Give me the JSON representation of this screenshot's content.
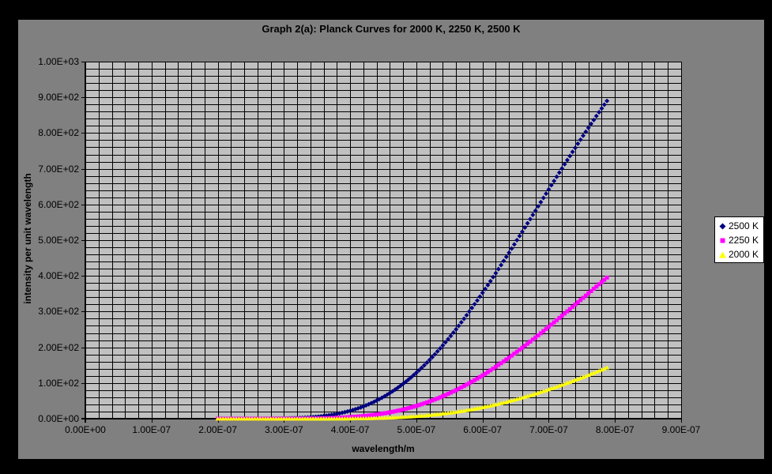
{
  "chart": {
    "title": "Graph 2(a): Planck Curves for 2000 K, 2250 K, 2500 K",
    "background_color": "#808080",
    "plot_background_color": "#C0C0C0",
    "gridline_color": "#000000",
    "frame_color": "#000000",
    "x_axis": {
      "title": "wavelength/m",
      "min": 0,
      "max": 9e-07,
      "major_step": 1e-07,
      "minor_step": 2e-08,
      "tick_labels": [
        "0.00E+00",
        "1.00E-07",
        "2.00E-07",
        "3.00E-07",
        "4.00E-07",
        "5.00E-07",
        "6.00E-07",
        "7.00E-07",
        "8.00E-07",
        "9.00E-07"
      ]
    },
    "y_axis": {
      "title": "intensity per unit wavelength",
      "min": 0,
      "max": 1000,
      "major_step": 100,
      "minor_step": 20,
      "tick_labels": [
        "0.00E+00",
        "1.00E+02",
        "2.00E+02",
        "3.00E+02",
        "4.00E+02",
        "5.00E+02",
        "6.00E+02",
        "7.00E+02",
        "8.00E+02",
        "9.00E+02",
        "1.00E+03"
      ]
    },
    "legend": {
      "background_color": "#FFFFFF",
      "border_color": "#000000",
      "position": "right",
      "items": [
        {
          "label": "2500 K",
          "marker": "diamond",
          "color": "#000080"
        },
        {
          "label": "2250 K",
          "marker": "square",
          "color": "#FF00FF"
        },
        {
          "label": "2000 K",
          "marker": "triangle",
          "color": "#FFFF00"
        }
      ]
    }
  },
  "chart_data": {
    "type": "scatter",
    "title": "Graph 2(a): Planck Curves for 2000 K, 2250 K, 2500 K",
    "xlabel": "wavelength/m",
    "ylabel": "intensity per unit wavelength",
    "xlim": [
      0,
      9e-07
    ],
    "ylim": [
      0,
      1000
    ],
    "grid": true,
    "legend_position": "right",
    "wavelength_nm": [
      200,
      220,
      240,
      260,
      280,
      300,
      320,
      340,
      360,
      380,
      400,
      420,
      440,
      460,
      480,
      500,
      520,
      540,
      560,
      580,
      600,
      620,
      640,
      660,
      680,
      700,
      720,
      740,
      760,
      780,
      790
    ],
    "marker_step_nm": 4,
    "series": [
      {
        "name": "2500 K",
        "marker": "diamond",
        "color": "#000080",
        "values": [
          0,
          0,
          0.02,
          0.08,
          0.28,
          0.77,
          1.9,
          3.9,
          7.6,
          13.4,
          22.1,
          34.3,
          50.8,
          71.8,
          97.7,
          128.7,
          164.6,
          205.3,
          250.4,
          300,
          352.5,
          407.7,
          464.9,
          523.5,
          582.8,
          642.2,
          700.9,
          758.7,
          814.8,
          869,
          895
        ]
      },
      {
        "name": "2250 K",
        "marker": "square",
        "color": "#FF00FF",
        "values": [
          0,
          0,
          0,
          0.01,
          0.03,
          0.09,
          0.25,
          0.6,
          1.3,
          2.5,
          4.5,
          7.5,
          11.9,
          17.9,
          25.8,
          35.8,
          48.2,
          62.9,
          80.1,
          99.6,
          121.2,
          145.3,
          171.2,
          198.7,
          227.5,
          257.5,
          288.3,
          319.6,
          351.1,
          382.7,
          398.3
        ]
      },
      {
        "name": "2000 K",
        "marker": "triangle",
        "color": "#FFFF00",
        "values": [
          0,
          0,
          0,
          0,
          0,
          0.01,
          0.02,
          0.06,
          0.14,
          0.3,
          0.61,
          1.1,
          1.9,
          3.1,
          4.9,
          7.2,
          10.3,
          14.3,
          19.2,
          25.1,
          32,
          40,
          49.1,
          59.2,
          70.2,
          82.2,
          95,
          108.5,
          122.6,
          137.3,
          144.8
        ]
      }
    ]
  }
}
